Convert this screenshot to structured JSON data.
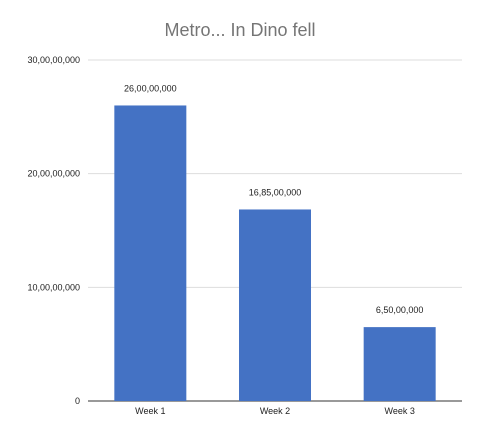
{
  "chart_data": {
    "type": "bar",
    "title": "Metro... In Dino fell",
    "categories": [
      "Week 1",
      "Week 2",
      "Week 3"
    ],
    "values": [
      260000000,
      168500000,
      65000000
    ],
    "data_labels": [
      "26,00,00,000",
      "16,85,00,000",
      "6,50,00,000"
    ],
    "ylim": [
      0,
      300000000
    ],
    "yticks": [
      0,
      100000000,
      200000000,
      300000000
    ],
    "ytick_labels": [
      "0",
      "10,00,00,000",
      "20,00,00,000",
      "30,00,00,000"
    ],
    "grid": true,
    "legend": "none",
    "bar_color": "#4472C4",
    "grid_color": "#DDDDDD",
    "xlabel": "",
    "ylabel": ""
  }
}
